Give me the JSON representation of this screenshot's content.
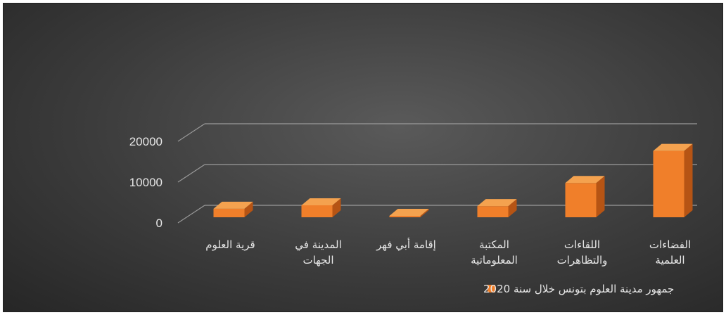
{
  "chart_data": {
    "type": "bar",
    "title": "",
    "categories": [
      [
        "قرية العلوم"
      ],
      [
        "المدينة في",
        "الجهات"
      ],
      [
        "إقامة أبي فهر"
      ],
      [
        "المكتبة",
        "المعلوماتية"
      ],
      [
        "اللقاءات",
        "والتظاهرات"
      ],
      [
        "الفضاءات",
        "العلمية"
      ]
    ],
    "series": [
      {
        "name": "جمهور مدينة العلوم بتونس خلال سنة 2020",
        "values": [
          2000,
          2800,
          150,
          2600,
          8000,
          15500
        ]
      }
    ],
    "y_ticks": [
      "0",
      "10000",
      "20000"
    ],
    "ylim": [
      0,
      20000
    ],
    "grid": true,
    "legend_position": "bottom",
    "style": "3d-column",
    "colors": {
      "bar_front": "#f07f2a",
      "bar_top": "#f4a24f",
      "bar_side": "#b65414",
      "grid": "#9a9a9a",
      "text": "#e6e6e6"
    }
  }
}
